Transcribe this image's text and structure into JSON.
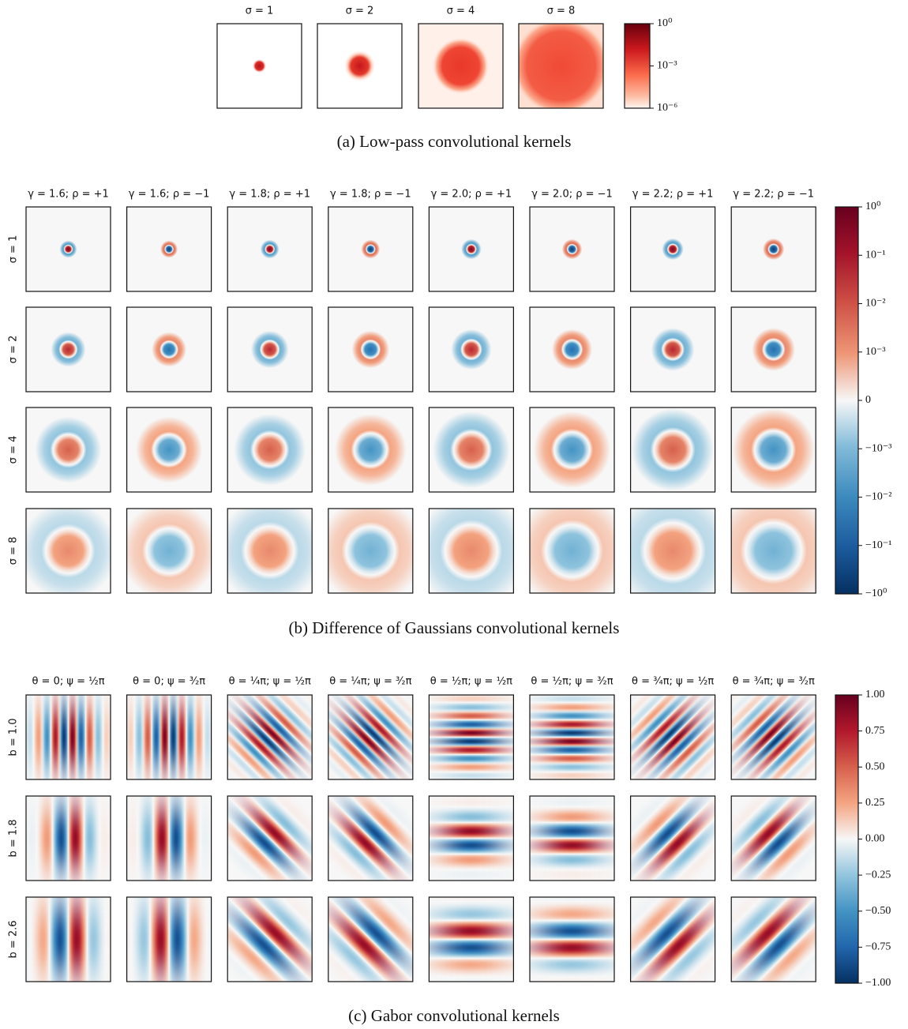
{
  "panels": [
    {
      "caption": "(a) Low-pass convolutional kernels",
      "columns": [
        "σ = 1",
        "σ = 2",
        "σ = 4",
        "σ = 8"
      ],
      "colorbar": [
        "10⁰",
        "10⁻³",
        "10⁻⁶"
      ]
    },
    {
      "caption": "(b) Difference of Gaussians convolutional kernels",
      "columns": [
        "γ = 1.6;  ρ = +1",
        "γ = 1.6;  ρ = −1",
        "γ = 1.8;  ρ = +1",
        "γ = 1.8;  ρ = −1",
        "γ = 2.0;  ρ = +1",
        "γ = 2.0;  ρ = −1",
        "γ = 2.2;  ρ = +1",
        "γ = 2.2;  ρ = −1"
      ],
      "rows": [
        "σ = 1",
        "σ = 2",
        "σ = 4",
        "σ = 8"
      ],
      "colorbar": [
        "10⁰",
        "10⁻¹",
        "10⁻²",
        "10⁻³",
        "0",
        "−10⁻³",
        "−10⁻²",
        "−10⁻¹",
        "−10⁰"
      ]
    },
    {
      "caption": "(c) Gabor convolutional kernels",
      "columns": [
        "θ = 0;  ψ = ½π",
        "θ = 0;  ψ = ³⁄₂π",
        "θ = ¼π;  ψ = ½π",
        "θ = ¼π;  ψ = ³⁄₂π",
        "θ = ½π;  ψ = ½π",
        "θ = ½π;  ψ = ³⁄₂π",
        "θ = ¾π;  ψ = ½π",
        "θ = ¾π;  ψ = ³⁄₂π"
      ],
      "rows": [
        "b = 1.0",
        "b = 1.8",
        "b = 2.6"
      ],
      "colorbar": [
        "1.00",
        "0.75",
        "0.50",
        "0.25",
        "0.00",
        "−0.25",
        "−0.50",
        "−0.75",
        "−1.00"
      ]
    }
  ]
}
